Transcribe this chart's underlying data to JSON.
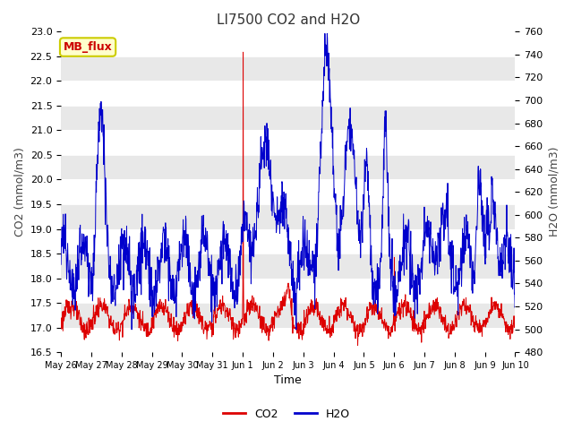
{
  "title": "LI7500 CO2 and H2O",
  "xlabel": "Time",
  "ylabel_left": "CO2 (mmol/m3)",
  "ylabel_right": "H2O (mmol/m3)",
  "ylim_left": [
    16.5,
    23.0
  ],
  "ylim_right": [
    480,
    760
  ],
  "yticks_left": [
    16.5,
    17.0,
    17.5,
    18.0,
    18.5,
    19.0,
    19.5,
    20.0,
    20.5,
    21.0,
    21.5,
    22.0,
    22.5,
    23.0
  ],
  "yticks_right": [
    480,
    500,
    520,
    540,
    560,
    580,
    600,
    620,
    640,
    660,
    680,
    700,
    720,
    740,
    760
  ],
  "xtick_labels": [
    "May 26",
    "May 27",
    "May 28",
    "May 29",
    "May 30",
    "May 31",
    "Jun 1",
    "Jun 2",
    "Jun 3",
    "Jun 4",
    "Jun 5",
    "Jun 6",
    "Jun 7",
    "Jun 8",
    "Jun 9",
    "Jun 10"
  ],
  "co2_color": "#dd0000",
  "h2o_color": "#0000cc",
  "bg_color": "#ffffff",
  "band_color": "#e8e8e8",
  "legend_label_co2": "CO2",
  "legend_label_h2o": "H2O",
  "annotation_text": "MB_flux",
  "annotation_bg": "#ffffcc",
  "annotation_border": "#cccc00",
  "annotation_text_color": "#cc0000",
  "title_fontsize": 11,
  "label_fontsize": 9,
  "tick_fontsize": 8
}
